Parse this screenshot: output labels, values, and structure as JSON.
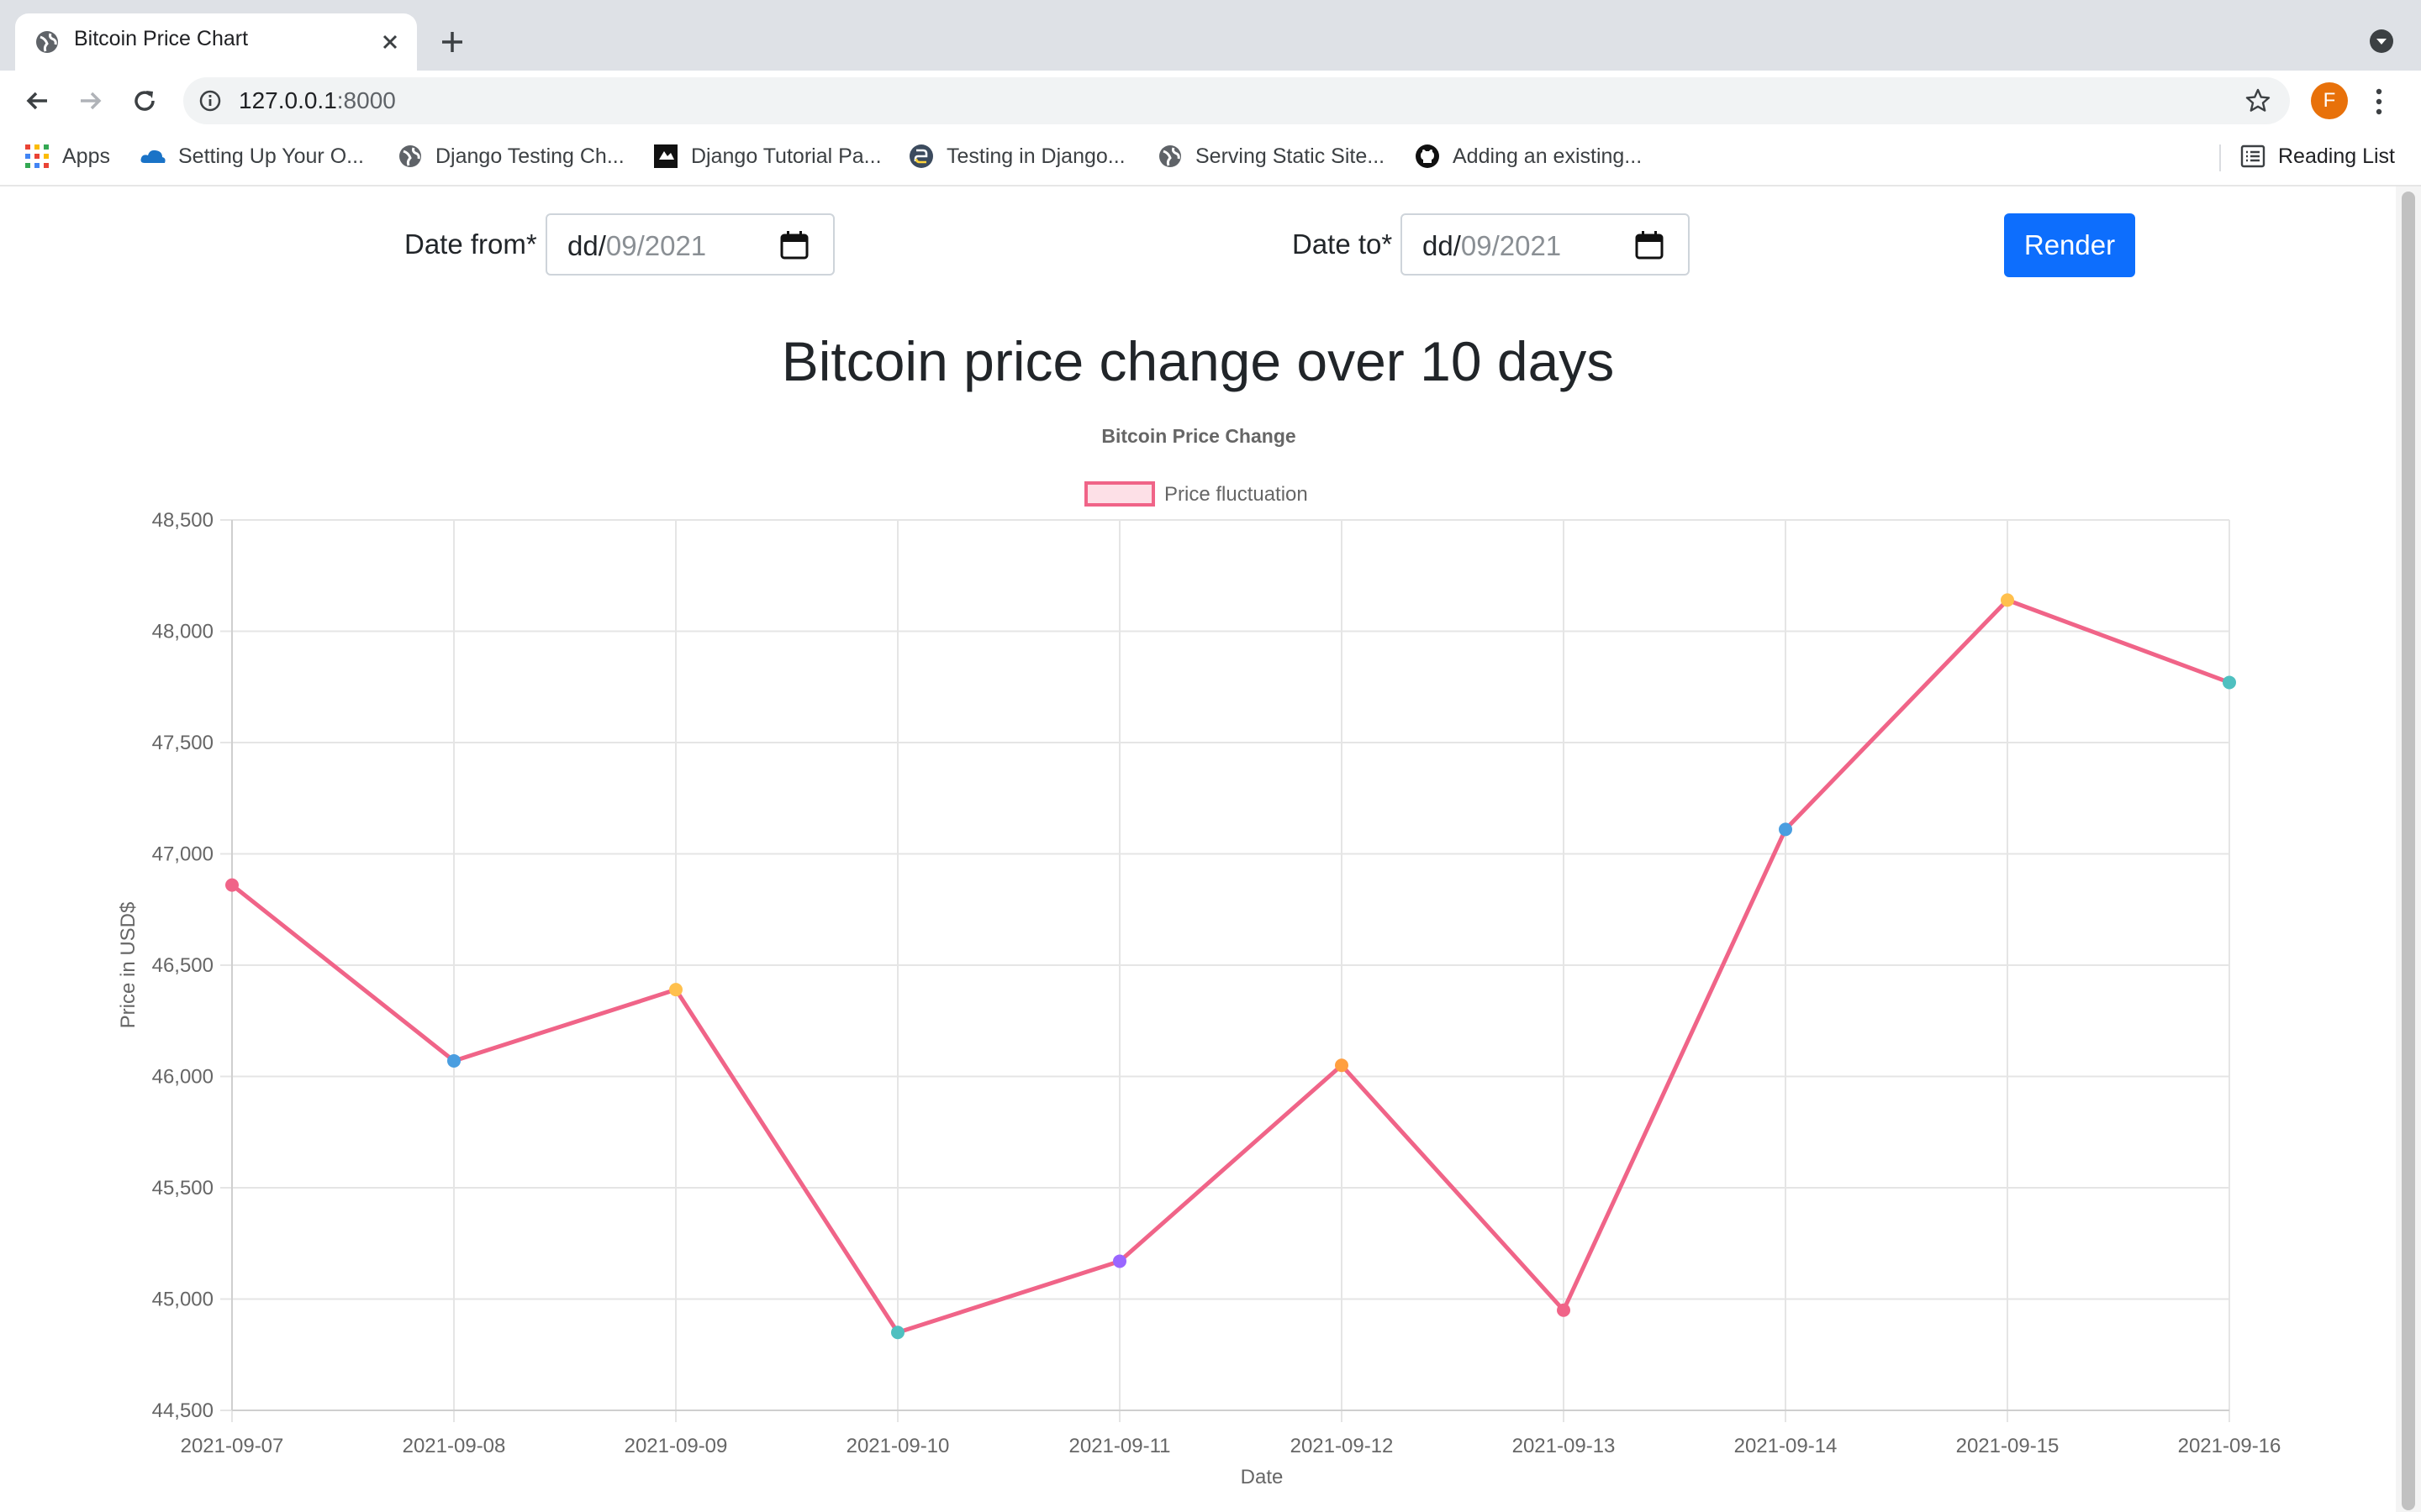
{
  "browser": {
    "tab_title": "Bitcoin Price Chart",
    "url_host": "127.0.0.1",
    "url_port": ":8000",
    "avatar_letter": "F",
    "bookmarks": [
      {
        "label": "Apps",
        "icon": "apps-grid-icon"
      },
      {
        "label": "Setting Up Your O...",
        "icon": "cloud-icon"
      },
      {
        "label": "Django Testing Ch...",
        "icon": "globe-icon"
      },
      {
        "label": "Django Tutorial Pa...",
        "icon": "page-icon"
      },
      {
        "label": "Testing in Django...",
        "icon": "python-icon"
      },
      {
        "label": "Serving Static Site...",
        "icon": "globe-icon"
      },
      {
        "label": "Adding an existing...",
        "icon": "github-icon"
      }
    ],
    "reading_list": "Reading List"
  },
  "form": {
    "date_from_label": "Date from*",
    "date_from_dd": "dd/",
    "date_from_rest": "09/2021",
    "date_to_label": "Date to*",
    "date_to_dd": "dd/",
    "date_to_rest": "09/2021",
    "render_label": "Render",
    "render_color": "#0d6efd"
  },
  "heading": "Bitcoin price change over 10 days",
  "chart_data": {
    "type": "line",
    "title": "Bitcoin Price Change",
    "xlabel": "Date",
    "ylabel": "Price in USD$",
    "ylim": [
      44500,
      48500
    ],
    "yticks": [
      "44,500",
      "45,000",
      "45,500",
      "46,000",
      "46,500",
      "47,000",
      "47,500",
      "48,000",
      "48,500"
    ],
    "grid": true,
    "legend_position": "top-center",
    "categories": [
      "2021-09-07",
      "2021-09-08",
      "2021-09-09",
      "2021-09-10",
      "2021-09-11",
      "2021-09-12",
      "2021-09-13",
      "2021-09-14",
      "2021-09-15",
      "2021-09-16"
    ],
    "series": [
      {
        "name": "Price fluctuation",
        "color": "#f06488",
        "values": [
          46860,
          46070,
          46390,
          44850,
          45170,
          46050,
          44950,
          47110,
          48140,
          47770
        ],
        "point_colors": [
          "#f06488",
          "#4a9ee0",
          "#ffc04d",
          "#4fc0c0",
          "#9a66ff",
          "#ff9f40",
          "#f06488",
          "#4a9ee0",
          "#ffc04d",
          "#4fc0c0"
        ]
      }
    ]
  }
}
